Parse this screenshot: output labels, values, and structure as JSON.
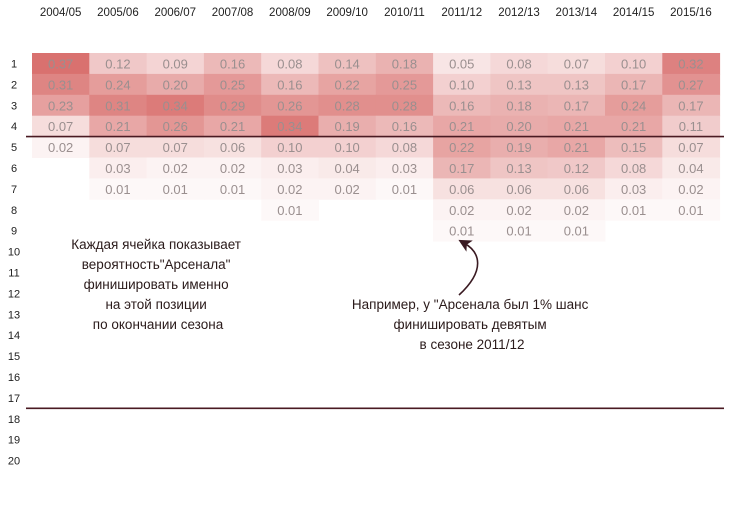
{
  "chart_data": {
    "type": "heatmap",
    "title": "",
    "xlabel": "",
    "ylabel": "",
    "categories": [
      "2004/05",
      "2005/06",
      "2006/07",
      "2007/08",
      "2008/09",
      "2009/10",
      "2010/11",
      "2011/12",
      "2012/13",
      "2013/14",
      "2014/15",
      "2015/16"
    ],
    "rows": [
      "1",
      "2",
      "3",
      "4",
      "5",
      "6",
      "7",
      "8",
      "9",
      "10",
      "11",
      "12",
      "13",
      "14",
      "15",
      "16",
      "17",
      "18",
      "19",
      "20"
    ],
    "values": [
      [
        0.37,
        0.12,
        0.09,
        0.16,
        0.08,
        0.14,
        0.18,
        0.05,
        0.08,
        0.07,
        0.1,
        0.32
      ],
      [
        0.31,
        0.24,
        0.2,
        0.25,
        0.16,
        0.22,
        0.25,
        0.1,
        0.13,
        0.13,
        0.17,
        0.27
      ],
      [
        0.23,
        0.31,
        0.34,
        0.29,
        0.26,
        0.28,
        0.28,
        0.16,
        0.18,
        0.17,
        0.24,
        0.17
      ],
      [
        0.07,
        0.21,
        0.26,
        0.21,
        0.34,
        0.19,
        0.16,
        0.21,
        0.2,
        0.21,
        0.21,
        0.11
      ],
      [
        0.02,
        0.07,
        0.07,
        0.06,
        0.1,
        0.1,
        0.08,
        0.22,
        0.19,
        0.21,
        0.15,
        0.07
      ],
      [
        null,
        0.03,
        0.02,
        0.02,
        0.03,
        0.04,
        0.03,
        0.17,
        0.13,
        0.12,
        0.08,
        0.04
      ],
      [
        null,
        0.01,
        0.01,
        0.01,
        0.02,
        0.02,
        0.01,
        0.06,
        0.06,
        0.06,
        0.03,
        0.02
      ],
      [
        null,
        null,
        null,
        null,
        0.01,
        null,
        null,
        0.02,
        0.02,
        0.02,
        0.01,
        0.01
      ],
      [
        null,
        null,
        null,
        null,
        null,
        null,
        null,
        0.01,
        0.01,
        0.01,
        null,
        null
      ],
      [
        null,
        null,
        null,
        null,
        null,
        null,
        null,
        null,
        null,
        null,
        null,
        null
      ],
      [
        null,
        null,
        null,
        null,
        null,
        null,
        null,
        null,
        null,
        null,
        null,
        null
      ],
      [
        null,
        null,
        null,
        null,
        null,
        null,
        null,
        null,
        null,
        null,
        null,
        null
      ],
      [
        null,
        null,
        null,
        null,
        null,
        null,
        null,
        null,
        null,
        null,
        null,
        null
      ],
      [
        null,
        null,
        null,
        null,
        null,
        null,
        null,
        null,
        null,
        null,
        null,
        null
      ],
      [
        null,
        null,
        null,
        null,
        null,
        null,
        null,
        null,
        null,
        null,
        null,
        null
      ],
      [
        null,
        null,
        null,
        null,
        null,
        null,
        null,
        null,
        null,
        null,
        null,
        null
      ],
      [
        null,
        null,
        null,
        null,
        null,
        null,
        null,
        null,
        null,
        null,
        null,
        null
      ],
      [
        null,
        null,
        null,
        null,
        null,
        null,
        null,
        null,
        null,
        null,
        null,
        null
      ],
      [
        null,
        null,
        null,
        null,
        null,
        null,
        null,
        null,
        null,
        null,
        null,
        null
      ],
      [
        null,
        null,
        null,
        null,
        null,
        null,
        null,
        null,
        null,
        null,
        null,
        null
      ]
    ],
    "value_range": [
      0,
      0.37
    ],
    "color_scale": {
      "low": "#ffffff",
      "high": "#d9716f"
    },
    "threshold_lines": [
      {
        "between_rows": [
          4,
          5
        ],
        "meaning": "top four cutoff"
      },
      {
        "between_rows": [
          17,
          18
        ],
        "meaning": "relegation cutoff"
      }
    ],
    "line_color": "#4a1a22",
    "annotations": [
      {
        "id": "explanation",
        "lines": [
          "Каждая ячейка показывает",
          "вероятность\"Арсенала\"",
          "финишировать именно",
          "на этой позиции",
          "по окончании сезона"
        ]
      },
      {
        "id": "example",
        "lines": [
          "Например, у \"Арсенала был 1% шанс",
          "финишировать девятым",
          "в сезоне 2011/12"
        ],
        "points_to": {
          "column": "2011/12",
          "row": "9"
        }
      }
    ]
  }
}
